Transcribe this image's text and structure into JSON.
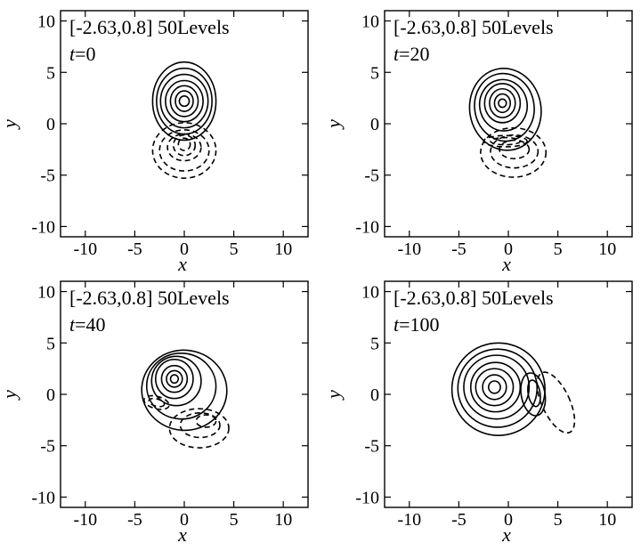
{
  "chart_data": [
    {
      "type": "contour",
      "annotation": "[-2.63,0.8] 50Levels",
      "time_prefix": "t",
      "time_value": "=0",
      "xlabel": "x",
      "ylabel": "y",
      "xlim": [
        -12.5,
        12.5
      ],
      "ylim": [
        -11,
        11
      ],
      "xticks": [
        -10,
        -5,
        0,
        5,
        10
      ],
      "yticks": [
        -10,
        -5,
        0,
        5,
        10
      ],
      "positive_contours": [
        {
          "cx": 0,
          "cy": 2.2,
          "rx": 3.2,
          "ry": 3.8,
          "rot": 0
        },
        {
          "cx": 0,
          "cy": 2.2,
          "rx": 2.8,
          "ry": 3.2,
          "rot": 0
        },
        {
          "cx": 0,
          "cy": 2.2,
          "rx": 2.4,
          "ry": 2.6,
          "rot": 0
        },
        {
          "cx": 0,
          "cy": 2.2,
          "rx": 1.9,
          "ry": 2.0,
          "rot": 0
        },
        {
          "cx": 0,
          "cy": 2.2,
          "rx": 1.4,
          "ry": 1.5,
          "rot": 0
        },
        {
          "cx": 0,
          "cy": 2.2,
          "rx": 0.9,
          "ry": 1.0,
          "rot": 0
        },
        {
          "cx": 0,
          "cy": 2.2,
          "rx": 0.5,
          "ry": 0.5,
          "rot": 0
        }
      ],
      "negative_contours": [
        {
          "cx": 0,
          "cy": -2.6,
          "rx": 3.2,
          "ry": 2.7,
          "rot": 0
        },
        {
          "cx": 0,
          "cy": -2.6,
          "rx": 2.5,
          "ry": 2.0,
          "rot": 0
        },
        {
          "cx": 0,
          "cy": -2.3,
          "rx": 1.7,
          "ry": 1.3,
          "rot": 0
        },
        {
          "cx": 0,
          "cy": -2.1,
          "rx": 1.1,
          "ry": 1.0,
          "rot": 0
        },
        {
          "cx": 0,
          "cy": -2.0,
          "rx": 0.6,
          "ry": 0.6,
          "rot": 0
        }
      ]
    },
    {
      "type": "contour",
      "annotation": "[-2.63,0.8] 50Levels",
      "time_prefix": "t",
      "time_value": "=20",
      "xlabel": "x",
      "ylabel": "y",
      "xlim": [
        -12.5,
        12.5
      ],
      "ylim": [
        -11,
        11
      ],
      "xticks": [
        -10,
        -5,
        0,
        5,
        10
      ],
      "yticks": [
        -10,
        -5,
        0,
        5,
        10
      ],
      "positive_contours": [
        {
          "cx": -0.3,
          "cy": 1.4,
          "rx": 3.6,
          "ry": 4.0,
          "rot": 10
        },
        {
          "cx": -0.4,
          "cy": 1.6,
          "rx": 3.0,
          "ry": 3.3,
          "rot": 10
        },
        {
          "cx": -0.5,
          "cy": 1.8,
          "rx": 2.4,
          "ry": 2.5,
          "rot": 10
        },
        {
          "cx": -0.6,
          "cy": 2.0,
          "rx": 1.8,
          "ry": 1.9,
          "rot": 0
        },
        {
          "cx": -0.6,
          "cy": 2.0,
          "rx": 1.3,
          "ry": 1.4,
          "rot": 0
        },
        {
          "cx": -0.6,
          "cy": 2.0,
          "rx": 0.8,
          "ry": 0.9,
          "rot": 0
        },
        {
          "cx": -0.6,
          "cy": 2.0,
          "rx": 0.4,
          "ry": 0.4,
          "rot": 0
        }
      ],
      "negative_contours": [
        {
          "cx": 0.5,
          "cy": -2.8,
          "rx": 3.3,
          "ry": 2.4,
          "rot": 0
        },
        {
          "cx": 0.6,
          "cy": -2.7,
          "rx": 2.4,
          "ry": 1.6,
          "rot": 0
        },
        {
          "cx": 0.6,
          "cy": -2.5,
          "rx": 1.5,
          "ry": 0.9,
          "rot": 0
        },
        {
          "cx": -0.3,
          "cy": -1.7,
          "rx": 2.2,
          "ry": 0.55,
          "rot": 0
        },
        {
          "cx": -0.3,
          "cy": -1.7,
          "rx": 1.5,
          "ry": 0.35,
          "rot": 0
        }
      ]
    },
    {
      "type": "contour",
      "annotation": "[-2.63,0.8] 50Levels",
      "time_prefix": "t",
      "time_value": "=40",
      "xlabel": "x",
      "ylabel": "y",
      "xlim": [
        -12.5,
        12.5
      ],
      "ylim": [
        -11,
        11
      ],
      "xticks": [
        -10,
        -5,
        0,
        5,
        10
      ],
      "yticks": [
        -10,
        -5,
        0,
        5,
        10
      ],
      "positive_contours": [
        {
          "cx": 0.0,
          "cy": 0.4,
          "rx": 4.3,
          "ry": 3.9,
          "rot": -5
        },
        {
          "cx": -0.3,
          "cy": 0.8,
          "rx": 3.5,
          "ry": 3.2,
          "rot": -5
        },
        {
          "cx": -0.8,
          "cy": 1.3,
          "rx": 2.5,
          "ry": 2.4,
          "rot": 0
        },
        {
          "cx": -1.0,
          "cy": 1.5,
          "rx": 1.9,
          "ry": 1.9,
          "rot": 0
        },
        {
          "cx": -1.0,
          "cy": 1.5,
          "rx": 1.3,
          "ry": 1.3,
          "rot": 0
        },
        {
          "cx": -1.0,
          "cy": 1.5,
          "rx": 0.8,
          "ry": 0.8,
          "rot": 0
        },
        {
          "cx": -1.0,
          "cy": 1.5,
          "rx": 0.4,
          "ry": 0.4,
          "rot": 0
        }
      ],
      "negative_contours": [
        {
          "cx": 1.5,
          "cy": -3.3,
          "rx": 3.0,
          "ry": 1.9,
          "rot": 0
        },
        {
          "cx": 1.6,
          "cy": -3.0,
          "rx": 2.0,
          "ry": 1.2,
          "rot": 0
        },
        {
          "cx": -2.8,
          "cy": -0.8,
          "rx": 1.3,
          "ry": 0.6,
          "rot": -15
        },
        {
          "cx": -2.8,
          "cy": -0.8,
          "rx": 0.8,
          "ry": 0.35,
          "rot": -15
        },
        {
          "cx": 2.2,
          "cy": -2.6,
          "rx": 1.0,
          "ry": 0.6,
          "rot": 0
        }
      ]
    },
    {
      "type": "contour",
      "annotation": "[-2.63,0.8] 50Levels",
      "time_prefix": "t",
      "time_value": "=100",
      "xlabel": "x",
      "ylabel": "y",
      "xlim": [
        -12.5,
        12.5
      ],
      "ylim": [
        -11,
        11
      ],
      "xticks": [
        -10,
        -5,
        0,
        5,
        10
      ],
      "yticks": [
        -10,
        -5,
        0,
        5,
        10
      ],
      "positive_contours": [
        {
          "cx": -1.0,
          "cy": 0.5,
          "rx": 4.7,
          "ry": 4.5,
          "rot": 0
        },
        {
          "cx": -1.1,
          "cy": 0.6,
          "rx": 4.0,
          "ry": 3.8,
          "rot": 0
        },
        {
          "cx": -1.2,
          "cy": 0.7,
          "rx": 3.3,
          "ry": 3.1,
          "rot": 0
        },
        {
          "cx": -1.3,
          "cy": 0.7,
          "rx": 2.5,
          "ry": 2.4,
          "rot": 0
        },
        {
          "cx": -1.4,
          "cy": 0.7,
          "rx": 1.9,
          "ry": 1.8,
          "rot": 0
        },
        {
          "cx": -1.4,
          "cy": 0.7,
          "rx": 1.2,
          "ry": 1.2,
          "rot": 0
        },
        {
          "cx": -1.4,
          "cy": 0.7,
          "rx": 0.6,
          "ry": 0.6,
          "rot": 0
        },
        {
          "cx": 2.5,
          "cy": 0.0,
          "rx": 1.2,
          "ry": 2.1,
          "rot": 10
        },
        {
          "cx": 2.6,
          "cy": 0.1,
          "rx": 0.6,
          "ry": 1.3,
          "rot": 10
        }
      ],
      "negative_contours": [
        {
          "cx": 4.8,
          "cy": -0.8,
          "rx": 1.4,
          "ry": 3.2,
          "rot": 25
        }
      ]
    }
  ]
}
